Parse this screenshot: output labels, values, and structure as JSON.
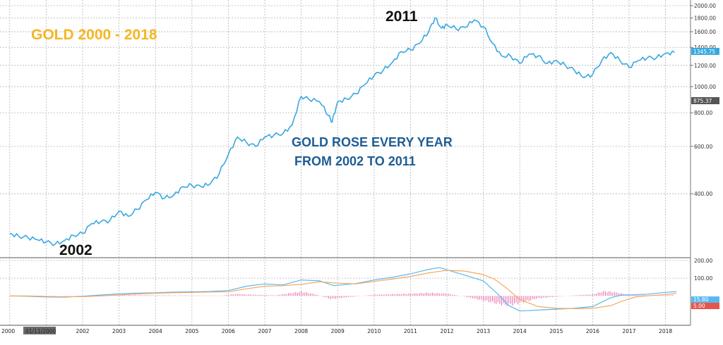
{
  "chart_data": [
    {
      "type": "line",
      "title": "GOLD 2000 - 2018",
      "annotations": {
        "low_label": "2002",
        "peak_label": "2011",
        "note_line1": "GOLD ROSE EVERY YEAR",
        "note_line2": "FROM 2002 TO 2011"
      },
      "yscale": "log",
      "ylim": [
        240,
        2000
      ],
      "yticks": [
        "2000.00",
        "1800.00",
        "1600.00",
        "1400.00",
        "1200.00",
        "1000.00",
        "800.00",
        "600.00",
        "400.00"
      ],
      "price_tag": "1345.75",
      "reference_tag": "875.37",
      "series": [
        {
          "color": "#3aa8e0",
          "x": [
            2000.0,
            2000.25,
            2000.5,
            2000.75,
            2001.0,
            2001.25,
            2001.5,
            2001.75,
            2002.0,
            2002.25,
            2002.5,
            2002.75,
            2003.0,
            2003.25,
            2003.5,
            2003.75,
            2004.0,
            2004.25,
            2004.5,
            2004.75,
            2005.0,
            2005.25,
            2005.5,
            2005.75,
            2006.0,
            2006.25,
            2006.5,
            2006.75,
            2007.0,
            2007.25,
            2007.5,
            2007.75,
            2008.0,
            2008.2,
            2008.5,
            2008.75,
            2008.85,
            2009.0,
            2009.25,
            2009.5,
            2009.75,
            2010.0,
            2010.25,
            2010.5,
            2010.75,
            2011.0,
            2011.25,
            2011.5,
            2011.67,
            2011.85,
            2012.0,
            2012.25,
            2012.5,
            2012.75,
            2013.0,
            2013.25,
            2013.5,
            2013.75,
            2014.0,
            2014.25,
            2014.5,
            2014.75,
            2015.0,
            2015.25,
            2015.5,
            2015.75,
            2016.0,
            2016.25,
            2016.5,
            2016.75,
            2017.0,
            2017.25,
            2017.5,
            2017.75,
            2018.0,
            2018.25
          ],
          "values": [
            285,
            278,
            275,
            270,
            265,
            260,
            268,
            280,
            285,
            310,
            315,
            318,
            345,
            330,
            350,
            380,
            405,
            385,
            395,
            425,
            430,
            425,
            435,
            475,
            560,
            650,
            620,
            600,
            650,
            660,
            670,
            720,
            920,
            900,
            880,
            780,
            740,
            880,
            900,
            940,
            1020,
            1100,
            1150,
            1230,
            1350,
            1370,
            1450,
            1600,
            1800,
            1650,
            1700,
            1640,
            1660,
            1770,
            1670,
            1450,
            1300,
            1300,
            1220,
            1320,
            1300,
            1220,
            1250,
            1200,
            1150,
            1080,
            1110,
            1250,
            1340,
            1250,
            1180,
            1250,
            1280,
            1280,
            1330,
            1340
          ]
        }
      ]
    },
    {
      "type": "line",
      "ylim": [
        -150,
        200
      ],
      "yticks": [
        "200.00",
        "100.00"
      ],
      "value_tags": [
        "15.80",
        "5.00"
      ],
      "series": [
        {
          "color": "#5ab8ee",
          "x": [
            2000.0,
            2000.5,
            2001.0,
            2001.5,
            2002.0,
            2002.5,
            2003.0,
            2003.5,
            2004.0,
            2004.5,
            2005.0,
            2005.5,
            2006.0,
            2006.5,
            2007.0,
            2007.5,
            2008.0,
            2008.5,
            2008.9,
            2009.5,
            2010.0,
            2010.5,
            2011.0,
            2011.5,
            2011.8,
            2012.2,
            2012.6,
            2013.0,
            2013.4,
            2013.7,
            2014.0,
            2014.5,
            2015.0,
            2015.5,
            2016.0,
            2016.5,
            2016.8,
            2017.0,
            2017.5,
            2018.0,
            2018.3
          ],
          "values": [
            0,
            -2,
            -6,
            -7,
            -2,
            5,
            12,
            16,
            18,
            22,
            23,
            25,
            30,
            55,
            68,
            62,
            90,
            85,
            58,
            70,
            90,
            105,
            125,
            150,
            160,
            135,
            110,
            85,
            10,
            -55,
            -85,
            -80,
            -75,
            -70,
            -60,
            -10,
            5,
            5,
            10,
            20,
            25
          ]
        },
        {
          "color": "#f4a860",
          "x": [
            2000.0,
            2000.5,
            2001.0,
            2001.5,
            2002.0,
            2002.5,
            2003.0,
            2003.5,
            2004.0,
            2004.5,
            2005.0,
            2005.5,
            2006.0,
            2006.5,
            2007.0,
            2007.5,
            2008.0,
            2008.5,
            2009.0,
            2009.5,
            2010.0,
            2010.5,
            2011.0,
            2011.5,
            2012.0,
            2012.5,
            2013.0,
            2013.3,
            2013.6,
            2014.0,
            2014.5,
            2015.0,
            2015.5,
            2016.0,
            2016.5,
            2016.8,
            2017.2,
            2017.6,
            2018.0,
            2018.3
          ],
          "values": [
            0,
            0,
            -3,
            -5,
            -4,
            0,
            6,
            11,
            15,
            18,
            20,
            22,
            24,
            40,
            55,
            58,
            65,
            80,
            72,
            68,
            82,
            95,
            110,
            130,
            145,
            140,
            120,
            95,
            50,
            -20,
            -60,
            -70,
            -72,
            -70,
            -55,
            -30,
            -5,
            2,
            8,
            15
          ]
        },
        {
          "color": "#e86aa8",
          "x": [
            2001.5,
            2002.0,
            2003.0,
            2004.0,
            2005.0,
            2005.8,
            2006.2,
            2006.7,
            2007.3,
            2008.0,
            2008.4,
            2008.8,
            2009.3,
            2010.0,
            2010.6,
            2011.0,
            2011.5,
            2012.0,
            2012.5,
            2013.0,
            2013.3,
            2013.6,
            2013.8,
            2014.1,
            2014.5,
            2015.0,
            2015.5,
            2016.0,
            2016.3,
            2016.6,
            2016.9,
            2017.3,
            2017.8,
            2018.2
          ],
          "values": [
            -3,
            2,
            6,
            4,
            3,
            2,
            12,
            8,
            4,
            28,
            10,
            -20,
            -8,
            8,
            12,
            15,
            20,
            15,
            -5,
            -30,
            -45,
            -60,
            -55,
            -40,
            -15,
            -5,
            4,
            10,
            30,
            25,
            10,
            5,
            4,
            6
          ]
        }
      ]
    }
  ],
  "x_axis": {
    "start_marker": "01/11/2000",
    "tick_labels": [
      "2002",
      "2003",
      "2004",
      "2005",
      "2006",
      "2007",
      "2008",
      "2009",
      "2010",
      "2011",
      "2012",
      "2013",
      "2014",
      "2015",
      "2016",
      "2017",
      "2018"
    ],
    "edge_label": "2000"
  }
}
